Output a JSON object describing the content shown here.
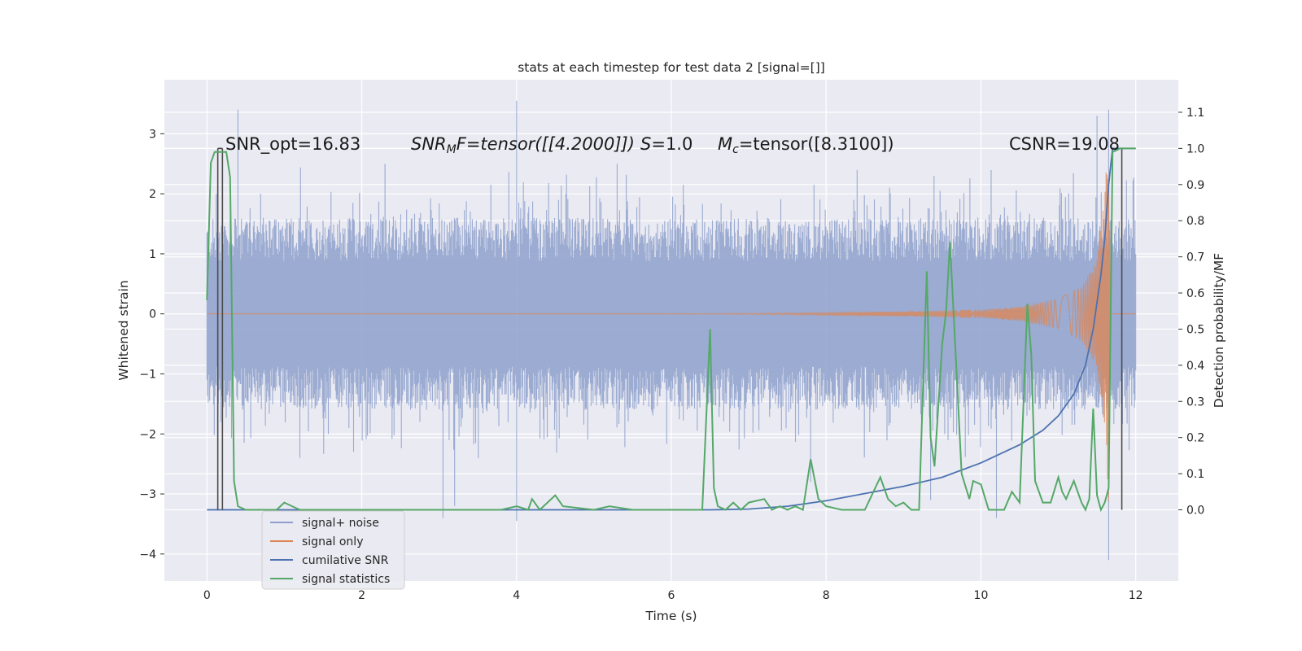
{
  "chart_data": {
    "type": "line",
    "title": "stats at each timestep for test data 2 [signal=[]]",
    "xlabel": "Time (s)",
    "ylabel_left": "Whitened strain",
    "ylabel_right": "Detection probability/MF",
    "xlim": [
      -0.55,
      12.55
    ],
    "ylim_left": [
      -4.45,
      3.9
    ],
    "ylim_right": [
      -0.197,
      1.19
    ],
    "grid": true,
    "legend_location": "lower-left",
    "x_ticks": [
      "0",
      "2",
      "4",
      "6",
      "8",
      "10",
      "12"
    ],
    "y_left_ticks": [
      "3",
      "2",
      "1",
      "0",
      "−1",
      "−2",
      "−3",
      "−4"
    ],
    "y_right_ticks": [
      "1.1",
      "1.0",
      "0.9",
      "0.8",
      "0.7",
      "0.6",
      "0.5",
      "0.4",
      "0.3",
      "0.2",
      "0.1",
      "0.0"
    ],
    "annotations": {
      "snr_opt": "SNR_opt=16.83",
      "snr_mf_sym": "SNR",
      "snr_mf_sub": "M",
      "snr_mf_rest": "F=tensor([[4.2000]])",
      "s_sym": "S",
      "s_rest": "=1.0",
      "mc_sym": "M",
      "mc_sub": "c",
      "mc_rest": "=tensor([8.3100])",
      "csnr": "CSNR=19.08"
    },
    "series": [
      {
        "name": "signal+ noise",
        "axis": "left",
        "color": "#8da0cb",
        "description_level": "noise band approx -1.6..1.6 with spikes up to 3.5 and down to -4.1",
        "band_low": -1.6,
        "band_high": 1.6,
        "spikes": [
          [
            0.12,
            2.0
          ],
          [
            0.18,
            -1.8
          ],
          [
            0.4,
            3.4
          ],
          [
            1.2,
            -2.4
          ],
          [
            2.3,
            2.5
          ],
          [
            3.05,
            -3.4
          ],
          [
            3.2,
            -3.2
          ],
          [
            4.0,
            -3.45
          ],
          [
            4.0,
            3.55
          ],
          [
            5.3,
            2.5
          ],
          [
            7.8,
            -2.8
          ],
          [
            8.4,
            2.4
          ],
          [
            9.35,
            -3.1
          ],
          [
            10.2,
            -3.4
          ],
          [
            11.5,
            3.3
          ],
          [
            11.65,
            -4.1
          ],
          [
            11.65,
            3.4
          ]
        ]
      },
      {
        "name": "signal only",
        "axis": "left",
        "color": "#dd8452",
        "envelope": [
          [
            0,
            0.0
          ],
          [
            6.0,
            0.0
          ],
          [
            7.0,
            0.01
          ],
          [
            8.0,
            0.02
          ],
          [
            9.0,
            0.04
          ],
          [
            10.0,
            0.07
          ],
          [
            10.5,
            0.12
          ],
          [
            11.0,
            0.25
          ],
          [
            11.3,
            0.45
          ],
          [
            11.5,
            0.9
          ],
          [
            11.6,
            2.0
          ],
          [
            11.65,
            3.3
          ],
          [
            11.68,
            0.0
          ],
          [
            12.0,
            0.0
          ]
        ]
      },
      {
        "name": "cumilative SNR",
        "axis": "right",
        "color": "#4c72b0",
        "x": [
          0,
          6.5,
          7.0,
          7.5,
          8.0,
          8.5,
          9.0,
          9.5,
          10.0,
          10.5,
          10.8,
          11.0,
          11.2,
          11.35,
          11.45,
          11.55,
          11.6,
          11.65,
          11.7,
          11.8,
          12.0
        ],
        "y": [
          0.0,
          0.0,
          0.002,
          0.01,
          0.025,
          0.045,
          0.065,
          0.09,
          0.13,
          0.18,
          0.22,
          0.26,
          0.32,
          0.4,
          0.5,
          0.65,
          0.75,
          0.9,
          1.0,
          1.0,
          1.0
        ]
      },
      {
        "name": "signal statistics",
        "axis": "right",
        "color": "#55a868",
        "x": [
          0.0,
          0.05,
          0.1,
          0.15,
          0.2,
          0.25,
          0.3,
          0.35,
          0.4,
          0.5,
          0.7,
          0.9,
          1.0,
          1.1,
          1.2,
          1.5,
          2.0,
          3.0,
          3.5,
          3.8,
          4.0,
          4.15,
          4.2,
          4.3,
          4.4,
          4.5,
          4.6,
          5.0,
          5.2,
          5.5,
          6.0,
          6.4,
          6.5,
          6.55,
          6.6,
          6.7,
          6.8,
          6.9,
          7.0,
          7.2,
          7.3,
          7.4,
          7.5,
          7.6,
          7.7,
          7.8,
          7.9,
          8.0,
          8.2,
          8.5,
          8.7,
          8.8,
          8.9,
          9.0,
          9.1,
          9.2,
          9.3,
          9.35,
          9.4,
          9.5,
          9.55,
          9.6,
          9.7,
          9.75,
          9.85,
          9.9,
          10.0,
          10.1,
          10.2,
          10.3,
          10.4,
          10.5,
          10.6,
          10.65,
          10.7,
          10.8,
          10.9,
          11.0,
          11.05,
          11.1,
          11.2,
          11.3,
          11.35,
          11.4,
          11.45,
          11.5,
          11.55,
          11.6,
          11.65,
          11.7,
          11.8,
          11.9,
          12.0
        ],
        "y": [
          0.58,
          0.96,
          0.99,
          0.99,
          0.99,
          0.99,
          0.92,
          0.08,
          0.01,
          0.0,
          0.0,
          0.0,
          0.02,
          0.01,
          0.0,
          0.0,
          0.0,
          0.0,
          0.0,
          0.0,
          0.01,
          0.0,
          0.03,
          0.0,
          0.02,
          0.04,
          0.01,
          0.0,
          0.01,
          0.0,
          0.0,
          0.0,
          0.5,
          0.06,
          0.01,
          0.0,
          0.02,
          0.0,
          0.02,
          0.03,
          0.0,
          0.01,
          0.0,
          0.01,
          0.0,
          0.14,
          0.03,
          0.01,
          0.0,
          0.0,
          0.09,
          0.03,
          0.01,
          0.02,
          0.0,
          0.0,
          0.66,
          0.2,
          0.12,
          0.46,
          0.55,
          0.74,
          0.32,
          0.1,
          0.03,
          0.08,
          0.07,
          0.0,
          0.0,
          0.0,
          0.05,
          0.02,
          0.57,
          0.43,
          0.08,
          0.02,
          0.02,
          0.09,
          0.05,
          0.03,
          0.08,
          0.02,
          0.0,
          0.03,
          0.28,
          0.04,
          0.0,
          0.02,
          0.06,
          0.99,
          1.0,
          1.0,
          1.0
        ]
      }
    ],
    "vlines": [
      0.14,
      0.2,
      11.82
    ]
  },
  "legend": {
    "items": [
      {
        "label": "signal+ noise",
        "color": "#8da0cb"
      },
      {
        "label": "signal only",
        "color": "#dd8452"
      },
      {
        "label": "cumilative SNR",
        "color": "#4c72b0"
      },
      {
        "label": "signal statistics",
        "color": "#55a868"
      }
    ]
  },
  "colors": {
    "background": "#eaeaf2",
    "grid": "#ffffff",
    "vline": "#4a4a4a"
  }
}
